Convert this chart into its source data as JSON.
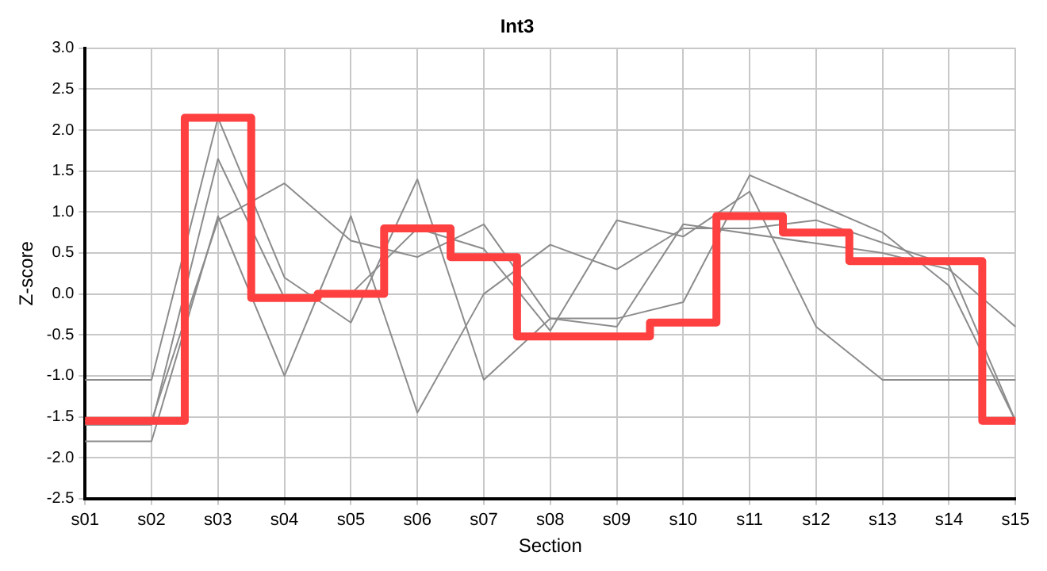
{
  "chart_data": {
    "type": "line",
    "title": "Int3",
    "xlabel": "Section",
    "ylabel": "Z-score",
    "categories": [
      "s01",
      "s02",
      "s03",
      "s04",
      "s05",
      "s06",
      "s07",
      "s08",
      "s09",
      "s10",
      "s11",
      "s12",
      "s13",
      "s14",
      "s15"
    ],
    "series": [
      {
        "color": "#8c8c8c",
        "values": [
          -1.05,
          -1.05,
          2.15,
          0.2,
          -0.35,
          1.4,
          -1.05,
          -0.3,
          -0.3,
          -0.1,
          1.45,
          1.1,
          0.75,
          0.1,
          -1.55
        ]
      },
      {
        "color": "#8c8c8c",
        "values": [
          -1.6,
          -1.6,
          1.65,
          -0.05,
          0.0,
          0.8,
          0.55,
          -0.45,
          0.9,
          0.7,
          1.25,
          -0.4,
          -1.05,
          -1.05,
          -1.05
        ]
      },
      {
        "color": "#8c8c8c",
        "values": [
          -1.8,
          -1.8,
          0.95,
          -1.0,
          0.95,
          -1.45,
          0.0,
          0.6,
          0.3,
          0.8,
          0.8,
          0.9,
          null,
          0.35,
          -1.55
        ]
      },
      {
        "color": "#8c8c8c",
        "values": [
          -1.55,
          -1.55,
          0.9,
          1.35,
          0.65,
          0.45,
          0.85,
          -0.3,
          -0.4,
          0.85,
          null,
          null,
          0.5,
          0.3,
          -0.4
        ]
      },
      {
        "type": "step",
        "color": "#ff4040",
        "values": [
          -1.55,
          -1.55,
          2.15,
          -0.05,
          0.0,
          0.8,
          0.45,
          -0.52,
          -0.52,
          -0.35,
          0.95,
          0.75,
          0.4,
          0.4,
          -1.55
        ]
      }
    ],
    "ylim": [
      -2.5,
      3.0
    ],
    "yticks": [
      {
        "value": -2.5,
        "label": "-2.5"
      },
      {
        "value": -2,
        "label": "-2.0"
      },
      {
        "value": -1.5,
        "label": "-1.5"
      },
      {
        "value": -1,
        "label": "-1.0"
      },
      {
        "value": -0.5,
        "label": "-0.5"
      },
      {
        "value": 0,
        "label": "0.0"
      },
      {
        "value": 0.5,
        "label": "0.5"
      },
      {
        "value": 1,
        "label": "1.0"
      },
      {
        "value": 1.5,
        "label": "1.5"
      },
      {
        "value": 2,
        "label": "2.0"
      },
      {
        "value": 2.5,
        "label": "2.5"
      },
      {
        "value": 3,
        "label": "3.0"
      }
    ],
    "grid": true,
    "marker": "none"
  }
}
